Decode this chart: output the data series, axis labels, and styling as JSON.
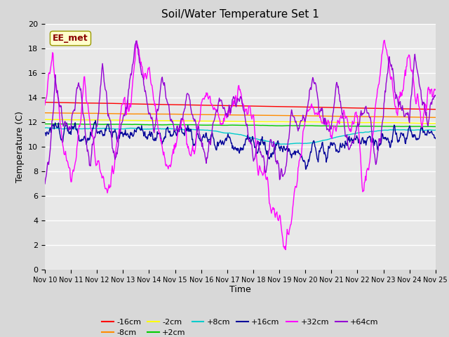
{
  "title": "Soil/Water Temperature Set 1",
  "xlabel": "Time",
  "ylabel": "Temperature (C)",
  "ylim": [
    0,
    20
  ],
  "xlim": [
    0,
    15
  ],
  "x_tick_labels": [
    "Nov 10",
    "Nov 11",
    "Nov 12",
    "Nov 13",
    "Nov 14",
    "Nov 15",
    "Nov 16",
    "Nov 17",
    "Nov 18",
    "Nov 19",
    "Nov 20",
    "Nov 21",
    "Nov 22",
    "Nov 23",
    "Nov 24",
    "Nov 25"
  ],
  "bg_color": "#d8d8d8",
  "plot_bg": "#e8e8e8",
  "annotation_text": "EE_met",
  "annotation_color": "#8b0000",
  "annotation_bg": "#ffffcc",
  "colors": {
    "-16cm": "#ff0000",
    "-8cm": "#ff8c00",
    "-2cm": "#ffff00",
    "+2cm": "#00cc00",
    "+8cm": "#00cccc",
    "+16cm": "#000099",
    "+32cm": "#ff00ff",
    "+64cm": "#9400d3"
  }
}
